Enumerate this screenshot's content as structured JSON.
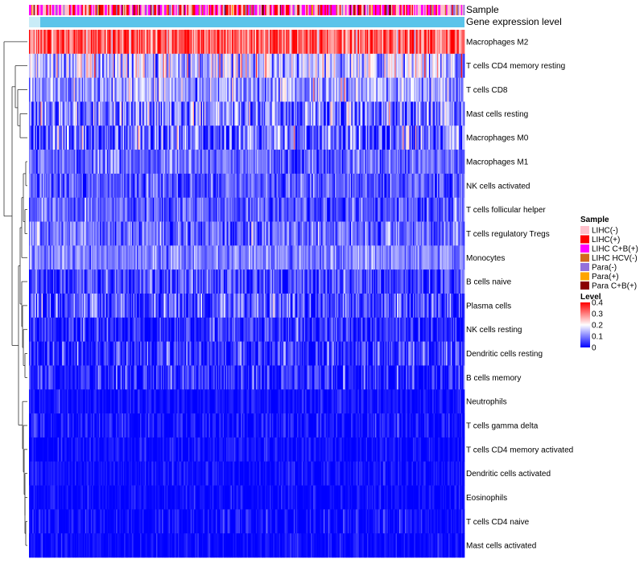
{
  "chart_data": {
    "type": "heatmap",
    "title": "",
    "annotation_labels": [
      "Sample",
      "Gene expression level"
    ],
    "rows": [
      {
        "name": "Macrophages M2",
        "mean": 0.33,
        "spread": 0.07
      },
      {
        "name": "T cells CD4 memory resting",
        "mean": 0.16,
        "spread": 0.08
      },
      {
        "name": "T cells CD8",
        "mean": 0.13,
        "spread": 0.06
      },
      {
        "name": "Mast cells resting",
        "mean": 0.1,
        "spread": 0.07
      },
      {
        "name": "Macrophages M0",
        "mean": 0.08,
        "spread": 0.08
      },
      {
        "name": "Macrophages M1",
        "mean": 0.08,
        "spread": 0.04
      },
      {
        "name": "NK cells activated",
        "mean": 0.07,
        "spread": 0.04
      },
      {
        "name": "T cells follicular helper",
        "mean": 0.07,
        "spread": 0.04
      },
      {
        "name": "T cells regulatory  Tregs",
        "mean": 0.08,
        "spread": 0.05
      },
      {
        "name": "Monocytes",
        "mean": 0.1,
        "spread": 0.04
      },
      {
        "name": "B cells naive",
        "mean": 0.05,
        "spread": 0.05
      },
      {
        "name": "Plasma cells",
        "mean": 0.06,
        "spread": 0.06
      },
      {
        "name": "NK cells resting",
        "mean": 0.03,
        "spread": 0.04
      },
      {
        "name": "Dendritic cells resting",
        "mean": 0.04,
        "spread": 0.05
      },
      {
        "name": "B cells memory",
        "mean": 0.03,
        "spread": 0.05
      },
      {
        "name": "Neutrophils",
        "mean": 0.01,
        "spread": 0.02
      },
      {
        "name": "T cells gamma delta",
        "mean": 0.01,
        "spread": 0.03
      },
      {
        "name": "T cells CD4 memory activated",
        "mean": 0.01,
        "spread": 0.02
      },
      {
        "name": "Dendritic cells activated",
        "mean": 0.01,
        "spread": 0.02
      },
      {
        "name": "Eosinophils",
        "mean": 0.005,
        "spread": 0.02
      },
      {
        "name": "T cells CD4 naive",
        "mean": 0.005,
        "spread": 0.03
      },
      {
        "name": "Mast cells activated",
        "mean": 0.005,
        "spread": 0.02
      }
    ],
    "legend_sample": {
      "title": "Sample",
      "entries": [
        {
          "label": "LIHC(-)",
          "color": "#ffc0cb"
        },
        {
          "label": "LIHC(+)",
          "color": "#ff0000"
        },
        {
          "label": "LIHC C+B(+)",
          "color": "#ff00ff"
        },
        {
          "label": "LIHC HCV(-)",
          "color": "#d2691e"
        },
        {
          "label": "Para(-)",
          "color": "#9370db"
        },
        {
          "label": "Para(+)",
          "color": "#ffa500"
        },
        {
          "label": "Para C+B(+)",
          "color": "#8b0000"
        }
      ]
    },
    "legend_level": {
      "title": "Level",
      "ticks": [
        "0.4",
        "0.3",
        "0.2",
        "0.1",
        "0"
      ],
      "range": [
        0,
        0.4
      ],
      "colors": {
        "low": "#0000ff",
        "mid": "#ffffff",
        "high": "#ff0000"
      }
    },
    "expression_bar_color": "#5bc4ea",
    "n_samples": 380
  }
}
